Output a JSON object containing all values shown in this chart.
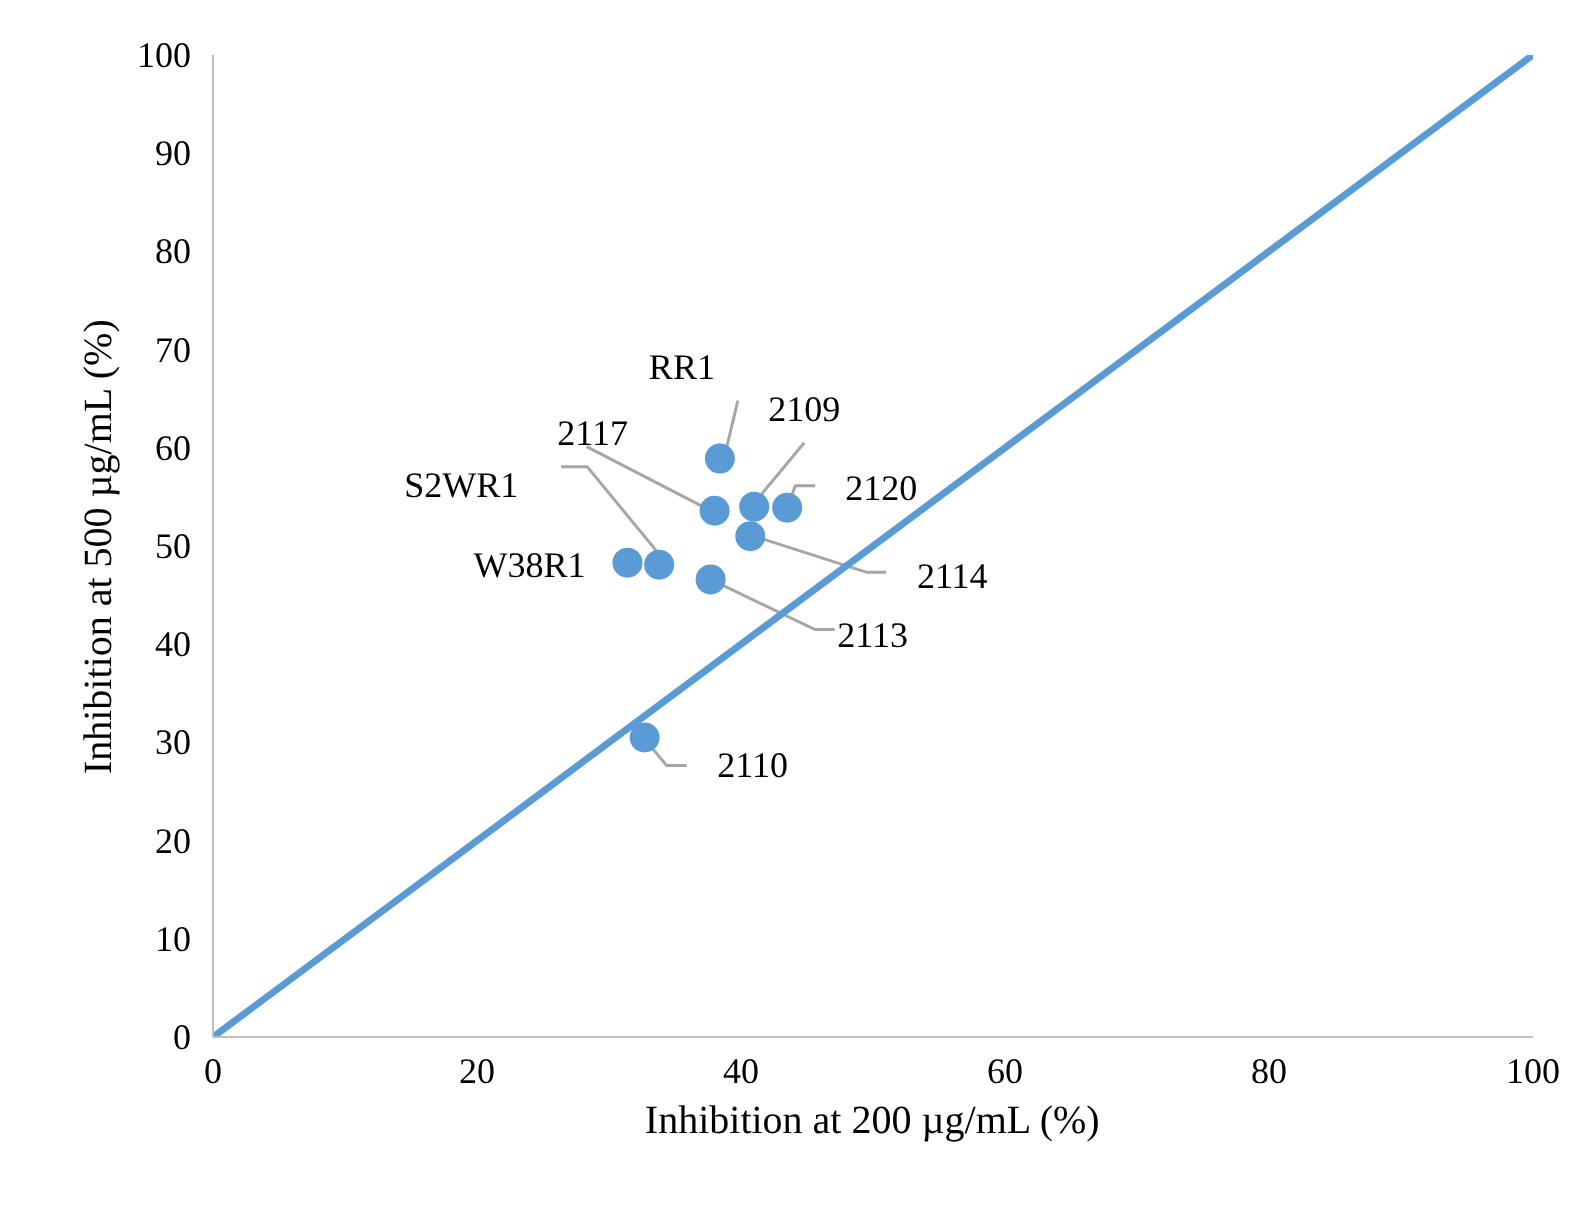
{
  "chart_data": {
    "type": "scatter",
    "xlabel": "Inhibition at 200 µg/mL (%)",
    "ylabel": "Inhibition at 500 µg/mL (%)",
    "xlim": [
      0,
      100
    ],
    "ylim": [
      0,
      100
    ],
    "xticks": [
      0,
      20,
      40,
      60,
      80,
      100
    ],
    "yticks": [
      0,
      10,
      20,
      30,
      40,
      50,
      60,
      70,
      80,
      90,
      100
    ],
    "grid": false,
    "marker": "circle",
    "series": [
      {
        "color": "#5b9bd5",
        "x": [
          38.4,
          41.0,
          43.5,
          38.0,
          40.7,
          33.8,
          31.4,
          37.7,
          32.7
        ],
        "values": [
          58.9,
          54.0,
          53.9,
          53.6,
          51.0,
          48.1,
          48.3,
          46.6,
          30.5
        ]
      },
      {
        "type": "line",
        "color": "#5b9bd5",
        "x": [
          0,
          100
        ],
        "values": [
          0,
          100
        ],
        "marker": "none",
        "line_style": "solid"
      }
    ],
    "annotations": [
      {
        "text": "RR1",
        "x": 38.4,
        "y": 58.9
      },
      {
        "text": "2109",
        "x": 41.0,
        "y": 54.0
      },
      {
        "text": "2120",
        "x": 43.5,
        "y": 53.9
      },
      {
        "text": "2117",
        "x": 38.0,
        "y": 53.6
      },
      {
        "text": "2114",
        "x": 40.7,
        "y": 51.0
      },
      {
        "text": "S2WR1",
        "x": 33.8,
        "y": 48.1
      },
      {
        "text": "W38R1",
        "x": 31.4,
        "y": 48.3
      },
      {
        "text": "2113",
        "x": 37.7,
        "y": 46.6
      },
      {
        "text": "2110",
        "x": 32.7,
        "y": 30.5
      }
    ]
  }
}
